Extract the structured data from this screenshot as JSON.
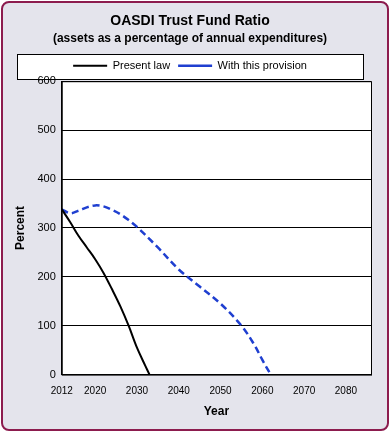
{
  "chart_data": {
    "type": "line",
    "title": "OASDI Trust Fund Ratio",
    "subtitle": "(assets as a percentage of annual expenditures)",
    "x_label": "Year",
    "y_label": "Percent",
    "xlim": [
      2012,
      2086
    ],
    "xticks": [
      2012,
      2020,
      2030,
      2040,
      2050,
      2060,
      2070,
      2080
    ],
    "ylim": [
      0,
      600
    ],
    "yticks": [
      0,
      100,
      200,
      300,
      400,
      500,
      600
    ],
    "grid": "y",
    "legend": "top",
    "series": [
      {
        "name": "Present law",
        "color": "#000000",
        "line_style": "solid",
        "x": [
          2012,
          2014,
          2016,
          2018,
          2020,
          2022,
          2024,
          2026,
          2028,
          2030,
          2032,
          2033
        ],
        "values": [
          338,
          312,
          284,
          260,
          236,
          208,
          175,
          140,
          100,
          55,
          18,
          0
        ]
      },
      {
        "name": "With this provision",
        "color": "#1f3fd0",
        "line_style": "dashed",
        "x": [
          2012,
          2014,
          2016,
          2018,
          2020,
          2022,
          2024,
          2026,
          2028,
          2030,
          2035,
          2040,
          2045,
          2050,
          2055,
          2058,
          2060,
          2062
        ],
        "values": [
          338,
          330,
          335,
          342,
          346,
          344,
          337,
          328,
          316,
          302,
          260,
          215,
          180,
          145,
          100,
          62,
          30,
          0
        ]
      }
    ]
  }
}
